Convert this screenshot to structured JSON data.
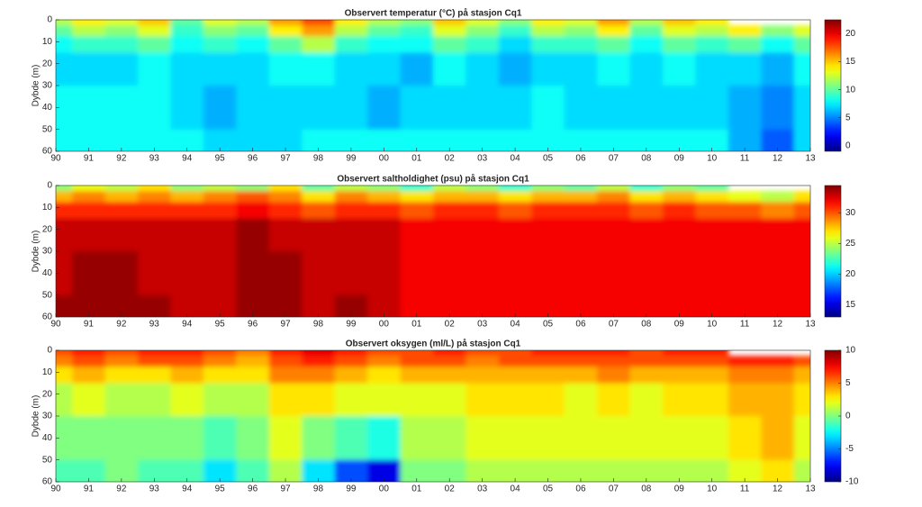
{
  "chart_data": [
    {
      "type": "contour",
      "title": "Observert temperatur (°C) på stasjon Cq1",
      "ylabel": "Dybde (m)",
      "colormap": "jet",
      "y_reversed": true,
      "xlim": [
        1990,
        2013
      ],
      "ylim": [
        0,
        60
      ],
      "clim": [
        -1,
        22.5
      ],
      "xticks": [
        {
          "value": 1990,
          "label": "90"
        },
        {
          "value": 1991,
          "label": "91"
        },
        {
          "value": 1992,
          "label": "92"
        },
        {
          "value": 1993,
          "label": "93"
        },
        {
          "value": 1994,
          "label": "94"
        },
        {
          "value": 1995,
          "label": "95"
        },
        {
          "value": 1996,
          "label": "96"
        },
        {
          "value": 1997,
          "label": "97"
        },
        {
          "value": 1998,
          "label": "98"
        },
        {
          "value": 1999,
          "label": "99"
        },
        {
          "value": 2000,
          "label": "00"
        },
        {
          "value": 2001,
          "label": "01"
        },
        {
          "value": 2002,
          "label": "02"
        },
        {
          "value": 2003,
          "label": "03"
        },
        {
          "value": 2004,
          "label": "04"
        },
        {
          "value": 2005,
          "label": "05"
        },
        {
          "value": 2006,
          "label": "06"
        },
        {
          "value": 2007,
          "label": "07"
        },
        {
          "value": 2008,
          "label": "08"
        },
        {
          "value": 2009,
          "label": "09"
        },
        {
          "value": 2010,
          "label": "10"
        },
        {
          "value": 2011,
          "label": "11"
        },
        {
          "value": 2012,
          "label": "12"
        },
        {
          "value": 2013,
          "label": "13"
        }
      ],
      "yticks": [
        0,
        10,
        20,
        30,
        40,
        50,
        60
      ],
      "cticks": [
        0,
        5,
        10,
        15,
        20
      ],
      "x": [
        1990,
        1991,
        1992,
        1993,
        1994,
        1995,
        1996,
        1997,
        1998,
        1999,
        2000,
        2001,
        2002,
        2003,
        2004,
        2005,
        2006,
        2007,
        2008,
        2009,
        2010,
        2011,
        2012,
        2013
      ],
      "y": [
        0,
        5,
        10,
        20,
        40,
        60
      ],
      "z": [
        [
          12,
          14,
          13,
          15,
          10,
          13,
          12,
          16,
          18,
          14,
          12,
          11,
          15,
          13,
          11,
          14,
          13,
          16,
          12,
          15,
          14,
          null,
          null,
          null
        ],
        [
          10,
          12,
          11,
          13,
          9,
          11,
          10,
          14,
          16,
          12,
          10,
          9,
          13,
          11,
          9,
          12,
          11,
          14,
          10,
          13,
          12,
          14,
          11,
          13
        ],
        [
          8,
          9,
          9,
          10,
          8,
          9,
          8,
          10,
          12,
          9,
          8,
          8,
          10,
          9,
          7,
          9,
          9,
          10,
          8,
          10,
          9,
          10,
          8,
          10
        ],
        [
          7,
          7,
          7,
          8,
          7,
          7,
          7,
          8,
          8,
          7,
          7,
          6,
          8,
          7,
          6,
          7,
          7,
          8,
          7,
          8,
          7,
          7,
          6,
          8
        ],
        [
          8,
          8,
          8,
          8,
          7,
          6,
          7,
          7,
          7,
          7,
          6,
          7,
          7,
          7,
          7,
          8,
          7,
          7,
          7,
          7,
          7,
          6,
          5,
          7
        ],
        [
          8,
          8,
          8,
          8,
          8,
          7,
          7,
          7,
          8,
          8,
          8,
          8,
          8,
          8,
          8,
          8,
          8,
          8,
          8,
          8,
          8,
          6,
          4,
          7
        ]
      ]
    },
    {
      "type": "contour",
      "title": "Observert saltholdighet (psu) på stasjon Cq1",
      "ylabel": "Dybde (m)",
      "colormap": "jet",
      "y_reversed": true,
      "xlim": [
        1990,
        2013
      ],
      "ylim": [
        0,
        60
      ],
      "clim": [
        13,
        34.5
      ],
      "xticks": [
        {
          "value": 1990,
          "label": "90"
        },
        {
          "value": 1991,
          "label": "91"
        },
        {
          "value": 1992,
          "label": "92"
        },
        {
          "value": 1993,
          "label": "93"
        },
        {
          "value": 1994,
          "label": "94"
        },
        {
          "value": 1995,
          "label": "95"
        },
        {
          "value": 1996,
          "label": "96"
        },
        {
          "value": 1997,
          "label": "97"
        },
        {
          "value": 1998,
          "label": "98"
        },
        {
          "value": 1999,
          "label": "99"
        },
        {
          "value": 2000,
          "label": "00"
        },
        {
          "value": 2001,
          "label": "01"
        },
        {
          "value": 2002,
          "label": "02"
        },
        {
          "value": 2003,
          "label": "03"
        },
        {
          "value": 2004,
          "label": "04"
        },
        {
          "value": 2005,
          "label": "05"
        },
        {
          "value": 2006,
          "label": "06"
        },
        {
          "value": 2007,
          "label": "07"
        },
        {
          "value": 2008,
          "label": "08"
        },
        {
          "value": 2009,
          "label": "09"
        },
        {
          "value": 2010,
          "label": "10"
        },
        {
          "value": 2011,
          "label": "11"
        },
        {
          "value": 2012,
          "label": "12"
        },
        {
          "value": 2013,
          "label": "13"
        }
      ],
      "yticks": [
        0,
        10,
        20,
        30,
        40,
        50,
        60
      ],
      "cticks": [
        15,
        20,
        25,
        30
      ],
      "x": [
        1990,
        1991,
        1992,
        1993,
        1994,
        1995,
        1996,
        1997,
        1998,
        1999,
        2000,
        2001,
        2002,
        2003,
        2004,
        2005,
        2006,
        2007,
        2008,
        2009,
        2010,
        2011,
        2012,
        2013
      ],
      "y": [
        0,
        5,
        10,
        20,
        40,
        60
      ],
      "z": [
        [
          24,
          26,
          25,
          27,
          24,
          25,
          24,
          27,
          23,
          25,
          24,
          22,
          25,
          24,
          22,
          24,
          23,
          25,
          22,
          24,
          23,
          null,
          null,
          null
        ],
        [
          28,
          29,
          28,
          29,
          28,
          29,
          30,
          29,
          27,
          29,
          28,
          27,
          28,
          28,
          27,
          28,
          28,
          29,
          27,
          28,
          27,
          26,
          25,
          27
        ],
        [
          31,
          31,
          31,
          31,
          31,
          31,
          32,
          31,
          30,
          31,
          31,
          30,
          31,
          31,
          30,
          31,
          31,
          31,
          30,
          31,
          30,
          30,
          29,
          30
        ],
        [
          33,
          33,
          33,
          33,
          33,
          33,
          34,
          33,
          33,
          33,
          33,
          32,
          32,
          32,
          32,
          32,
          32,
          32,
          32,
          32,
          32,
          32,
          32,
          32
        ],
        [
          33,
          34,
          34,
          33,
          33,
          33,
          34,
          34,
          33,
          33,
          33,
          32,
          32,
          32,
          32,
          32,
          32,
          32,
          32,
          32,
          32,
          32,
          32,
          32
        ],
        [
          34,
          34,
          34,
          34,
          33,
          33,
          34,
          34,
          33,
          34,
          33,
          32,
          32,
          32,
          32,
          32,
          32,
          32,
          32,
          32,
          32,
          32,
          32,
          32
        ]
      ]
    },
    {
      "type": "contour",
      "title": "Observert oksygen (ml/L) på stasjon Cq1",
      "ylabel": "Dybde (m)",
      "colormap": "jet",
      "y_reversed": true,
      "xlim": [
        1990,
        2013
      ],
      "ylim": [
        0,
        60
      ],
      "clim": [
        -10,
        10
      ],
      "xticks": [
        {
          "value": 1990,
          "label": "90"
        },
        {
          "value": 1991,
          "label": "91"
        },
        {
          "value": 1992,
          "label": "92"
        },
        {
          "value": 1993,
          "label": "93"
        },
        {
          "value": 1994,
          "label": "94"
        },
        {
          "value": 1995,
          "label": "95"
        },
        {
          "value": 1996,
          "label": "96"
        },
        {
          "value": 1997,
          "label": "97"
        },
        {
          "value": 1998,
          "label": "98"
        },
        {
          "value": 1999,
          "label": "99"
        },
        {
          "value": 2000,
          "label": "00"
        },
        {
          "value": 2001,
          "label": "01"
        },
        {
          "value": 2002,
          "label": "02"
        },
        {
          "value": 2003,
          "label": "03"
        },
        {
          "value": 2004,
          "label": "04"
        },
        {
          "value": 2005,
          "label": "05"
        },
        {
          "value": 2006,
          "label": "06"
        },
        {
          "value": 2007,
          "label": "07"
        },
        {
          "value": 2008,
          "label": "08"
        },
        {
          "value": 2009,
          "label": "09"
        },
        {
          "value": 2010,
          "label": "10"
        },
        {
          "value": 2011,
          "label": "11"
        },
        {
          "value": 2012,
          "label": "12"
        },
        {
          "value": 2013,
          "label": "13"
        }
      ],
      "yticks": [
        0,
        10,
        20,
        30,
        40,
        50,
        60
      ],
      "cticks": [
        -10,
        -5,
        0,
        5,
        10
      ],
      "x": [
        1990,
        1991,
        1992,
        1993,
        1994,
        1995,
        1996,
        1997,
        1998,
        1999,
        2000,
        2001,
        2002,
        2003,
        2004,
        2005,
        2006,
        2007,
        2008,
        2009,
        2010,
        2011,
        2012,
        2013
      ],
      "y": [
        0,
        5,
        10,
        20,
        40,
        60
      ],
      "z": [
        [
          6,
          7,
          6,
          7,
          7,
          6,
          5,
          7,
          8,
          7,
          6,
          6,
          7,
          6,
          6,
          7,
          7,
          7,
          6,
          7,
          7,
          null,
          null,
          null
        ],
        [
          5,
          6,
          5,
          6,
          6,
          5,
          4,
          6,
          7,
          6,
          5,
          6,
          6,
          5,
          6,
          6,
          6,
          6,
          6,
          6,
          6,
          7,
          7,
          6
        ],
        [
          3,
          4,
          3,
          3,
          4,
          3,
          3,
          5,
          5,
          4,
          3,
          4,
          4,
          4,
          4,
          4,
          4,
          5,
          4,
          4,
          4,
          5,
          5,
          4
        ],
        [
          1,
          2,
          1,
          1,
          2,
          1,
          1,
          3,
          3,
          2,
          2,
          2,
          2,
          3,
          3,
          3,
          2,
          3,
          2,
          3,
          3,
          4,
          4,
          3
        ],
        [
          0,
          0,
          0,
          0,
          0,
          -1,
          0,
          2,
          0,
          -1,
          -2,
          1,
          1,
          2,
          2,
          2,
          2,
          2,
          2,
          2,
          2,
          3,
          4,
          2
        ],
        [
          -1,
          -1,
          0,
          -1,
          -1,
          -3,
          -1,
          1,
          -3,
          -6,
          -8,
          0,
          0,
          1,
          1,
          1,
          1,
          1,
          1,
          1,
          1,
          2,
          3,
          1
        ]
      ]
    }
  ]
}
